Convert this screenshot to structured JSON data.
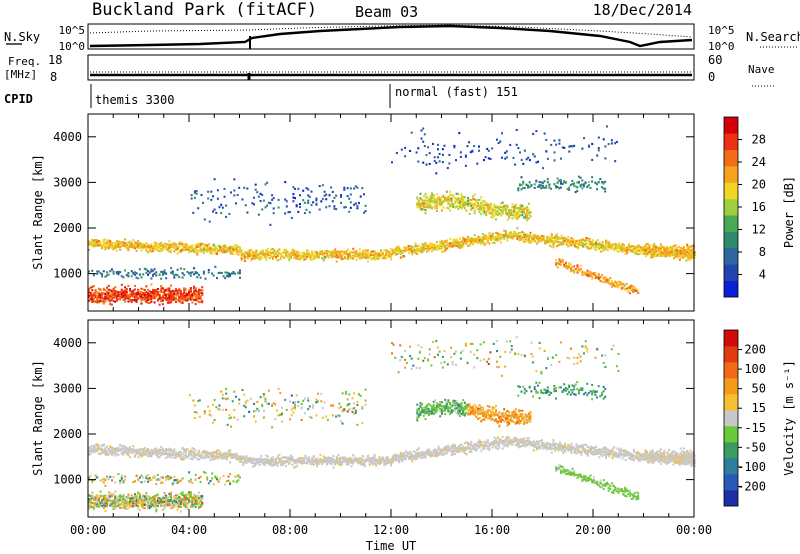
{
  "header": {
    "station": "Buckland Park (fitACF)",
    "beam": "Beam 03",
    "date": "18/Dec/2014"
  },
  "noise_panel": {
    "left_label": "N.Sky",
    "right_label": "N.Search",
    "left_ticks": [
      "10^5",
      "10^0"
    ],
    "right_ticks": [
      "10^5",
      "10^0"
    ]
  },
  "freq_panel": {
    "left_label": "Freq.",
    "left_unit": "[MHz]",
    "left_ticks": [
      "18",
      "8"
    ],
    "right_label": "Nave",
    "right_ticks": [
      "60",
      "0"
    ]
  },
  "cpid_panel": {
    "label": "CPID",
    "segments": [
      {
        "start_hour": 0,
        "label": "themis 3300"
      },
      {
        "start_hour": 12,
        "label": "normal (fast) 151"
      }
    ]
  },
  "chart_data": [
    {
      "type": "heatmap",
      "name": "Power",
      "ylabel": "Slant Range [km]",
      "xlabel": "",
      "ylim": [
        180,
        4500
      ],
      "xlim_hours": [
        0,
        24
      ],
      "yticks": [
        1000,
        2000,
        3000,
        4000
      ],
      "colorbar": {
        "label": "Power [dB]",
        "range": [
          0,
          32
        ],
        "ticks": [
          4,
          8,
          12,
          16,
          20,
          24,
          28
        ],
        "colors": [
          "#0b1fd6",
          "#2244b0",
          "#2f67a0",
          "#2e8a6c",
          "#49a957",
          "#9fd03c",
          "#f2d524",
          "#f6a31f",
          "#f26e19",
          "#ec3212",
          "#d6000c"
        ]
      }
    },
    {
      "type": "heatmap",
      "name": "Velocity",
      "ylabel": "Slant Range [km]",
      "xlabel": "Time UT",
      "ylim": [
        180,
        4500
      ],
      "xlim_hours": [
        0,
        24
      ],
      "yticks": [
        1000,
        2000,
        3000,
        4000
      ],
      "xticks": [
        "00:00",
        "04:00",
        "08:00",
        "12:00",
        "16:00",
        "20:00",
        "00:00"
      ],
      "colorbar": {
        "label": "Velocity [m s⁻¹]",
        "range": [
          -250,
          250
        ],
        "ticks": [
          "200",
          "100",
          "50",
          "15",
          "-15",
          "-50",
          "-100",
          "-200"
        ],
        "colors": [
          "#1d2fa6",
          "#2a58b6",
          "#2f7d9a",
          "#3b9c63",
          "#6cc93a",
          "#c8c8c8",
          "#f4c030",
          "#f59b1c",
          "#f26a18",
          "#e23b12",
          "#d10a0a"
        ]
      }
    }
  ]
}
